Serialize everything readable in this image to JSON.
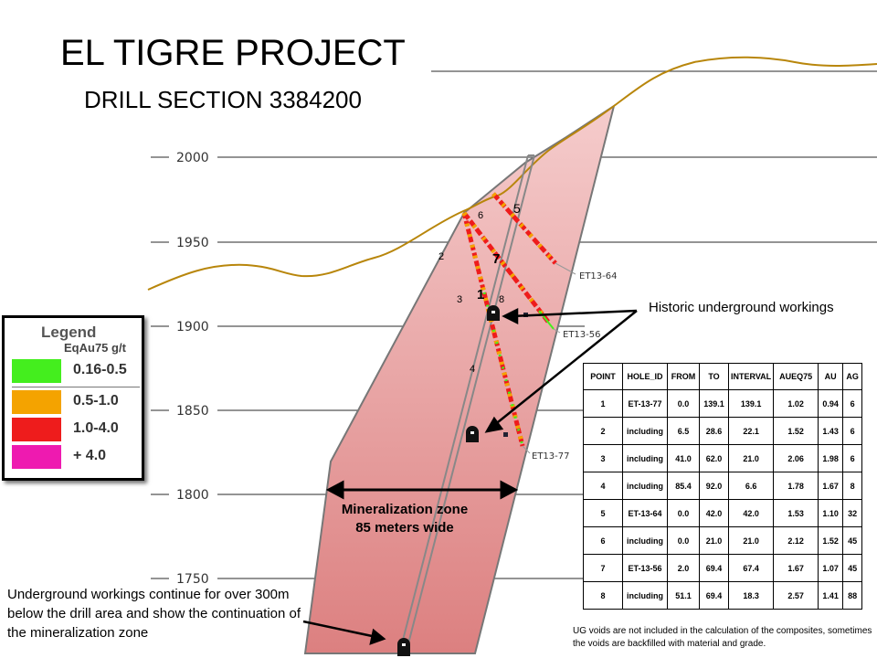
{
  "title": "EL TIGRE PROJECT",
  "subtitle": "DRILL SECTION 3384200",
  "elevations": [
    "2000",
    "1950",
    "1900",
    "1850",
    "1800",
    "1750"
  ],
  "drill_holes": [
    "ET13-64",
    "ET13-56",
    "ET13-77"
  ],
  "point_labels": [
    "1",
    "2",
    "3",
    "4",
    "5",
    "6",
    "7",
    "8"
  ],
  "legend": {
    "title": "Legend",
    "subtitle": "EqAu75 g/t",
    "items": [
      {
        "label": "0.16-0.5",
        "color": "#44ee1e"
      },
      {
        "label": "0.5-1.0",
        "color": "#f4a300"
      },
      {
        "label": "1.0-4.0",
        "color": "#ee1c1c"
      },
      {
        "label": "+ 4.0",
        "color": "#ee1ab0"
      }
    ]
  },
  "annotations": {
    "historic": "Historic underground workings",
    "mz_line1": "Mineralization zone",
    "mz_line2": "85 meters wide",
    "ug_text": "Underground workings continue for over 300m below the drill area and show the continuation of the mineralization zone",
    "footnote": "UG voids are not included in the calculation of the composites, sometimes the voids are backfilled with material and grade."
  },
  "table": {
    "headers": [
      "POINT",
      "HOLE_ID",
      "FROM",
      "TO",
      "INTERVAL",
      "AUEQ75",
      "AU",
      "AG"
    ],
    "rows": [
      [
        "1",
        "ET-13-77",
        "0.0",
        "139.1",
        "139.1",
        "1.02",
        "0.94",
        "6"
      ],
      [
        "2",
        "including",
        "6.5",
        "28.6",
        "22.1",
        "1.52",
        "1.43",
        "6"
      ],
      [
        "3",
        "including",
        "41.0",
        "62.0",
        "21.0",
        "2.06",
        "1.98",
        "6"
      ],
      [
        "4",
        "including",
        "85.4",
        "92.0",
        "6.6",
        "1.78",
        "1.67",
        "8"
      ],
      [
        "5",
        "ET-13-64",
        "0.0",
        "42.0",
        "42.0",
        "1.53",
        "1.10",
        "32"
      ],
      [
        "6",
        "including",
        "0.0",
        "21.0",
        "21.0",
        "2.12",
        "1.52",
        "45"
      ],
      [
        "7",
        "ET-13-56",
        "2.0",
        "69.4",
        "67.4",
        "1.67",
        "1.07",
        "45"
      ],
      [
        "8",
        "including",
        "51.1",
        "69.4",
        "18.3",
        "2.57",
        "1.41",
        "88"
      ]
    ]
  },
  "colors": {
    "zone_top": "#f3c4c4",
    "zone_bottom": "#de8585",
    "topography": "#b8860b",
    "elevation_line": "#555555"
  }
}
